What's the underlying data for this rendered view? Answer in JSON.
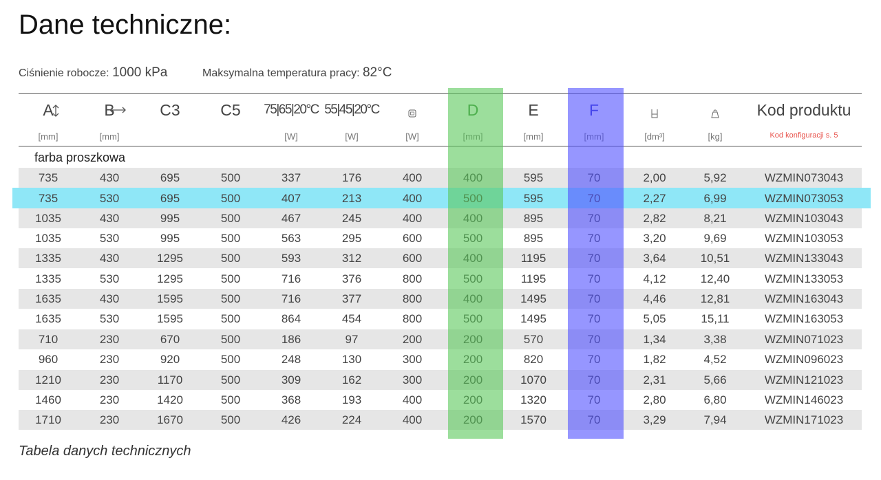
{
  "title": "Dane techniczne:",
  "params": [
    {
      "label": "Ciśnienie robocze:",
      "value": "1000 kPa"
    },
    {
      "label": "Maksymalna temperatura pracy:",
      "value": "82°C"
    }
  ],
  "table": {
    "columns": [
      {
        "label": "A",
        "unit": "[mm]"
      },
      {
        "label": "B",
        "unit": "[mm]"
      },
      {
        "label": "C3"
      },
      {
        "label": "C5"
      },
      {
        "label": "75|65|20°C",
        "unit": "[W]"
      },
      {
        "label": "55|45|20°C",
        "unit": "[W]"
      },
      {
        "unit": "[W]"
      },
      {
        "label": "D",
        "unit": "[mm]"
      },
      {
        "label": "E",
        "unit": "[mm]"
      },
      {
        "label": "F",
        "unit": "[mm]"
      },
      {
        "unit": "[dm³]"
      },
      {
        "unit": "[kg]"
      },
      {
        "label": "Kod produktu",
        "note": "Kod konfiguracji s. 5"
      }
    ],
    "section": "farba proszkowa",
    "rows": [
      [
        "735",
        "430",
        "695",
        "500",
        "337",
        "176",
        "400",
        "400",
        "595",
        "70",
        "2,00",
        "5,92",
        "WZMIN073043"
      ],
      [
        "735",
        "530",
        "695",
        "500",
        "407",
        "213",
        "400",
        "500",
        "595",
        "70",
        "2,27",
        "6,99",
        "WZMIN073053"
      ],
      [
        "1035",
        "430",
        "995",
        "500",
        "467",
        "245",
        "400",
        "400",
        "895",
        "70",
        "2,82",
        "8,21",
        "WZMIN103043"
      ],
      [
        "1035",
        "530",
        "995",
        "500",
        "563",
        "295",
        "600",
        "500",
        "895",
        "70",
        "3,20",
        "9,69",
        "WZMIN103053"
      ],
      [
        "1335",
        "430",
        "1295",
        "500",
        "593",
        "312",
        "600",
        "400",
        "1195",
        "70",
        "3,64",
        "10,51",
        "WZMIN133043"
      ],
      [
        "1335",
        "530",
        "1295",
        "500",
        "716",
        "376",
        "800",
        "500",
        "1195",
        "70",
        "4,12",
        "12,40",
        "WZMIN133053"
      ],
      [
        "1635",
        "430",
        "1595",
        "500",
        "716",
        "377",
        "800",
        "400",
        "1495",
        "70",
        "4,46",
        "12,81",
        "WZMIN163043"
      ],
      [
        "1635",
        "530",
        "1595",
        "500",
        "864",
        "454",
        "800",
        "500",
        "1495",
        "70",
        "5,05",
        "15,11",
        "WZMIN163053"
      ],
      [
        "710",
        "230",
        "670",
        "500",
        "186",
        "97",
        "200",
        "200",
        "570",
        "70",
        "1,34",
        "3,38",
        "WZMIN071023"
      ],
      [
        "960",
        "230",
        "920",
        "500",
        "248",
        "130",
        "300",
        "200",
        "820",
        "70",
        "1,82",
        "4,52",
        "WZMIN096023"
      ],
      [
        "1210",
        "230",
        "1170",
        "500",
        "309",
        "162",
        "300",
        "200",
        "1070",
        "70",
        "2,31",
        "5,66",
        "WZMIN121023"
      ],
      [
        "1460",
        "230",
        "1420",
        "500",
        "368",
        "193",
        "400",
        "200",
        "1320",
        "70",
        "2,80",
        "6,80",
        "WZMIN146023"
      ],
      [
        "1710",
        "230",
        "1670",
        "500",
        "426",
        "224",
        "400",
        "200",
        "1570",
        "70",
        "3,29",
        "7,94",
        "WZMIN171023"
      ]
    ]
  },
  "caption": "Tabela danych technicznych"
}
